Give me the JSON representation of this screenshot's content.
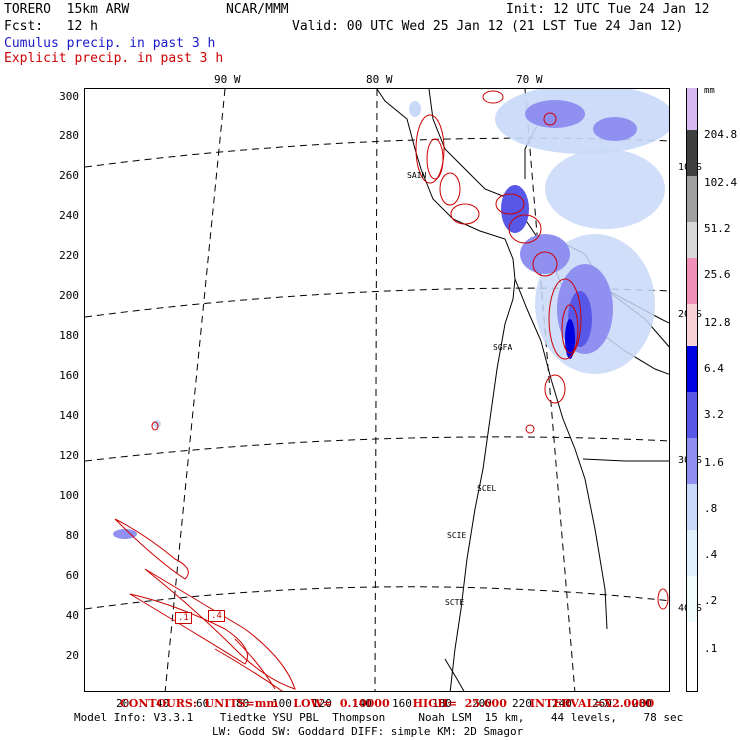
{
  "header": {
    "model": "TORERO  15km ARW",
    "org": "NCAR/MMM",
    "init": "Init: 12 UTC Tue 24 Jan 12",
    "fcst": "Fcst:   12 h",
    "valid": "Valid: 00 UTC Wed 25 Jan 12 (21 LST Tue 24 Jan 12)",
    "title1": "Cumulus precip. in past 3 h",
    "title2": "Explicit precip. in past 3 h",
    "title1_color": "#1a1acc",
    "title2_color": "#cc0000"
  },
  "axes": {
    "y_ticks": [
      "300",
      "280",
      "260",
      "240",
      "220",
      "200",
      "180",
      "160",
      "140",
      "120",
      "100",
      "80",
      "60",
      "40",
      "20"
    ],
    "x_ticks": [
      "20",
      "40",
      "60",
      "80",
      "100",
      "120",
      "140",
      "160",
      "180",
      "200",
      "220",
      "240",
      "260",
      "280"
    ],
    "lon_labels": [
      "90 W",
      "80 W",
      "70 W"
    ],
    "lat_labels": [
      "10 S",
      "20 S",
      "30 S",
      "40 S"
    ]
  },
  "cities": [
    "SAIN",
    "SGFA",
    "SCEL",
    "SCIE",
    "SCTE"
  ],
  "legend": {
    "unit": "mm",
    "labels": [
      "204.8",
      "102.4",
      "51.2",
      "25.6",
      "12.8",
      "6.4",
      "3.2",
      "1.6",
      ".8",
      ".4",
      ".2",
      ".1"
    ],
    "colors": [
      "#d8b8f0",
      "#404040",
      "#a0a0a0",
      "#d8d8d8",
      "#f090b8",
      "#f8d0d8",
      "#0000e0",
      "#5858e8",
      "#9090f0",
      "#c8d8f8",
      "#e0f0fc",
      "#f0fcfc",
      "#ffffff"
    ]
  },
  "contour_info": "CONTOURS:  UNITS=mm    LOW=  0.10000      HIGH=  25.600      INTERVAL=X2.0000",
  "contour_tags": [
    ".1",
    ".4"
  ],
  "footer": {
    "line1": "Model Info: V3.3.1    Tiedtke YSU PBL  Thompson     Noah LSM  15 km,    44 levels,    78 sec",
    "line2": "LW: Godd SW: Goddard DIFF: simple KM: 2D Smagor"
  }
}
